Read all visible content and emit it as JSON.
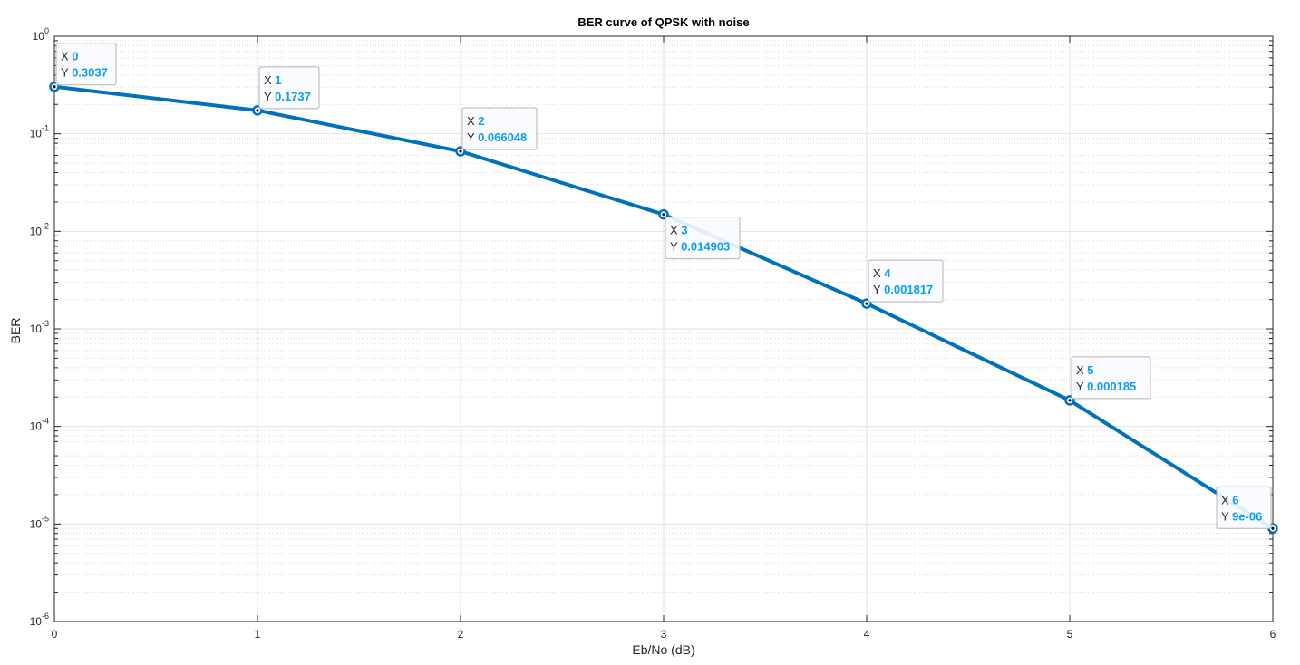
{
  "chart_data": {
    "type": "line",
    "title": "BER curve of QPSK with noise",
    "xlabel": "Eb/No (dB)",
    "ylabel": "BER",
    "x": [
      0,
      1,
      2,
      3,
      4,
      5,
      6
    ],
    "series": [
      {
        "values": [
          0.3037,
          0.1737,
          0.066048,
          0.014903,
          0.001817,
          0.000185,
          9e-06
        ]
      }
    ],
    "xlim": [
      0,
      6
    ],
    "ylim": [
      1e-06,
      1
    ],
    "yscale": "log",
    "grid": true,
    "minor_grid": true,
    "x_ticks": [
      "0",
      "1",
      "2",
      "3",
      "4",
      "5",
      "6"
    ],
    "y_ticks": [
      {
        "base": "10",
        "exp": "-6"
      },
      {
        "base": "10",
        "exp": "-5"
      },
      {
        "base": "10",
        "exp": "-4"
      },
      {
        "base": "10",
        "exp": "-3"
      },
      {
        "base": "10",
        "exp": "-2"
      },
      {
        "base": "10",
        "exp": "-1"
      },
      {
        "base": "10",
        "exp": "0"
      }
    ],
    "datatips": [
      {
        "x_key": "X",
        "x_val": "0",
        "y_key": "Y",
        "y_val": "0.3037"
      },
      {
        "x_key": "X",
        "x_val": "1",
        "y_key": "Y",
        "y_val": "0.1737"
      },
      {
        "x_key": "X",
        "x_val": "2",
        "y_key": "Y",
        "y_val": "0.066048"
      },
      {
        "x_key": "X",
        "x_val": "3",
        "y_key": "Y",
        "y_val": "0.014903"
      },
      {
        "x_key": "X",
        "x_val": "4",
        "y_key": "Y",
        "y_val": "0.001817"
      },
      {
        "x_key": "X",
        "x_val": "5",
        "y_key": "Y",
        "y_val": "0.000185"
      },
      {
        "x_key": "X",
        "x_val": "6",
        "y_key": "Y",
        "y_val": "9e-06"
      }
    ],
    "colors": {
      "line": "#0072BD",
      "tip_value": "#0a9ff0",
      "grid": "#e2e2e2",
      "axis": "#262626",
      "tip_bg": "#fafbff",
      "tip_border": "#b4b4b4"
    }
  }
}
